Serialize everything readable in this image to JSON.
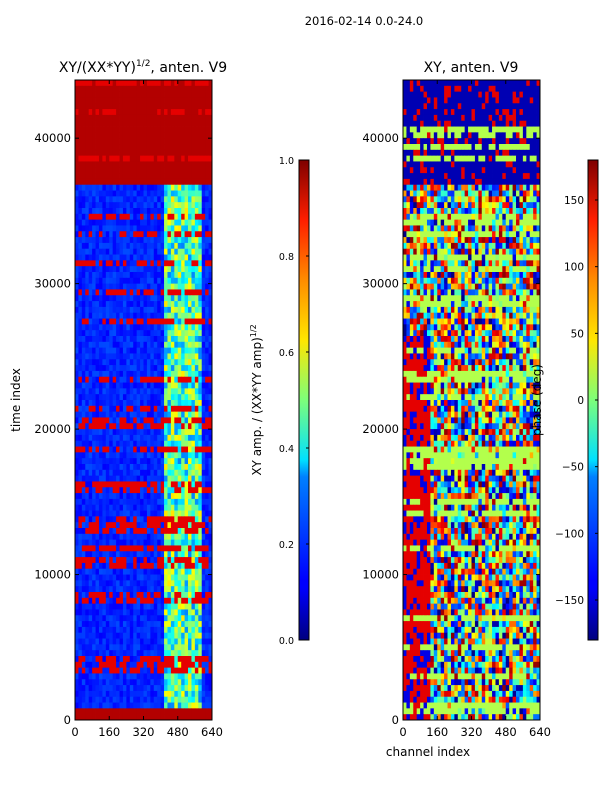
{
  "chart_data": {
    "suptitle": "2016-02-14 0.0-24.0",
    "shared_x": {
      "label": "channel index",
      "range": [
        0,
        640
      ],
      "ticks": [
        0,
        160,
        320,
        480,
        640
      ]
    },
    "panels": [
      {
        "type": "heatmap",
        "title": "XY/(XX*YY)",
        "title_sup": "1/2",
        "title_suffix": ", anten. V9",
        "ylabel": "time index",
        "xlabel": "",
        "xlim": [
          0,
          640
        ],
        "ylim": [
          0,
          44000
        ],
        "xticks": [
          0,
          160,
          320,
          480,
          640
        ],
        "yticks": [
          0,
          10000,
          20000,
          30000,
          40000
        ],
        "colormap": "jet",
        "colorbar": {
          "label": "XY amp. / (XX*YY amp)",
          "label_sup": "1/2",
          "range": [
            0.0,
            1.0
          ],
          "ticks": [
            "0.0",
            "0.2",
            "0.4",
            "0.6",
            "0.8",
            "1.0"
          ]
        },
        "notes": "mostly low (~0.1) with saturated band 37000-44000 and 0-1000; higher values in channels ~420-590"
      },
      {
        "type": "heatmap",
        "title": "XY, anten. V9",
        "ylabel": "",
        "xlabel": "channel index",
        "xlim": [
          0,
          640
        ],
        "ylim": [
          0,
          44000
        ],
        "xticks": [
          0,
          160,
          320,
          480,
          640
        ],
        "yticks": [
          0,
          10000,
          20000,
          30000,
          40000
        ],
        "colormap": "jet",
        "colorbar": {
          "label": "phase (deg)",
          "range": [
            -180,
            180
          ],
          "ticks": [
            "150",
            "100",
            "50",
            "0",
            "−50",
            "−100",
            "−150"
          ]
        },
        "notes": "XY phase; mixed phase with strong horizontal banding"
      }
    ]
  }
}
